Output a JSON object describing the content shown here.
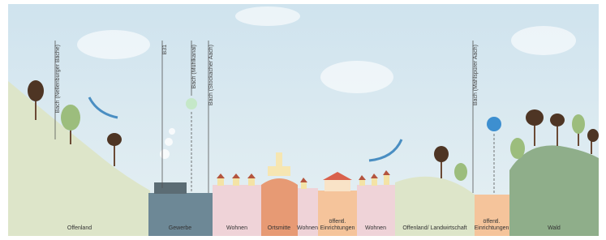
{
  "streams": [
    {
      "label": "Bach (Nellenburger Bäche)"
    },
    {
      "label": "B31"
    },
    {
      "label": "Bach (Mühlkanal)"
    },
    {
      "label": "Bach (Stockacher Aach)"
    },
    {
      "label": "Bach (Mahlspürer Aach)"
    }
  ],
  "zones": [
    {
      "label": [
        "Offenland"
      ]
    },
    {
      "label": [
        "Gewerbe"
      ]
    },
    {
      "label": [
        "Wohnen"
      ]
    },
    {
      "label": [
        "Ortsmitte"
      ]
    },
    {
      "label": [
        "Wohnen"
      ]
    },
    {
      "label": [
        "öffentl.",
        "Einrichtungen"
      ]
    },
    {
      "label": [
        "Wohnen"
      ]
    },
    {
      "label": [
        "Offenland/ Landwirtschaft"
      ]
    },
    {
      "label": [
        "öffentl.",
        "Einrichtungen"
      ]
    },
    {
      "label": [
        "Wald"
      ]
    }
  ]
}
